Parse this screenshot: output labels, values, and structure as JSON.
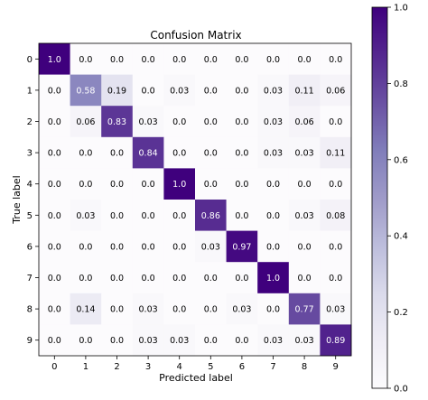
{
  "chart_data": {
    "type": "heatmap",
    "title": "Confusion Matrix",
    "xlabel": "Predicted label",
    "ylabel": "True label",
    "x_tick_labels": [
      "0",
      "1",
      "2",
      "3",
      "4",
      "5",
      "6",
      "7",
      "8",
      "9"
    ],
    "y_tick_labels": [
      "0",
      "1",
      "2",
      "3",
      "4",
      "5",
      "6",
      "7",
      "8",
      "9"
    ],
    "values": [
      [
        1.0,
        0.0,
        0.0,
        0.0,
        0.0,
        0.0,
        0.0,
        0.0,
        0.0,
        0.0
      ],
      [
        0.0,
        0.58,
        0.19,
        0.0,
        0.03,
        0.0,
        0.0,
        0.03,
        0.11,
        0.06
      ],
      [
        0.0,
        0.06,
        0.83,
        0.03,
        0.0,
        0.0,
        0.0,
        0.03,
        0.06,
        0.0
      ],
      [
        0.0,
        0.0,
        0.0,
        0.84,
        0.0,
        0.0,
        0.0,
        0.03,
        0.03,
        0.11
      ],
      [
        0.0,
        0.0,
        0.0,
        0.0,
        1.0,
        0.0,
        0.0,
        0.0,
        0.0,
        0.0
      ],
      [
        0.0,
        0.03,
        0.0,
        0.0,
        0.0,
        0.86,
        0.0,
        0.0,
        0.03,
        0.08
      ],
      [
        0.0,
        0.0,
        0.0,
        0.0,
        0.0,
        0.03,
        0.97,
        0.0,
        0.0,
        0.0
      ],
      [
        0.0,
        0.0,
        0.0,
        0.0,
        0.0,
        0.0,
        0.0,
        1.0,
        0.0,
        0.0
      ],
      [
        0.0,
        0.14,
        0.0,
        0.03,
        0.0,
        0.0,
        0.03,
        0.0,
        0.77,
        0.03
      ],
      [
        0.0,
        0.0,
        0.0,
        0.03,
        0.03,
        0.0,
        0.0,
        0.03,
        0.03,
        0.89
      ]
    ],
    "cell_labels": [
      [
        "1.0",
        "0.0",
        "0.0",
        "0.0",
        "0.0",
        "0.0",
        "0.0",
        "0.0",
        "0.0",
        "0.0"
      ],
      [
        "0.0",
        "0.58",
        "0.19",
        "0.0",
        "0.03",
        "0.0",
        "0.0",
        "0.03",
        "0.11",
        "0.06"
      ],
      [
        "0.0",
        "0.06",
        "0.83",
        "0.03",
        "0.0",
        "0.0",
        "0.0",
        "0.03",
        "0.06",
        "0.0"
      ],
      [
        "0.0",
        "0.0",
        "0.0",
        "0.84",
        "0.0",
        "0.0",
        "0.0",
        "0.03",
        "0.03",
        "0.11"
      ],
      [
        "0.0",
        "0.0",
        "0.0",
        "0.0",
        "1.0",
        "0.0",
        "0.0",
        "0.0",
        "0.0",
        "0.0"
      ],
      [
        "0.0",
        "0.03",
        "0.0",
        "0.0",
        "0.0",
        "0.86",
        "0.0",
        "0.0",
        "0.03",
        "0.08"
      ],
      [
        "0.0",
        "0.0",
        "0.0",
        "0.0",
        "0.0",
        "0.03",
        "0.97",
        "0.0",
        "0.0",
        "0.0"
      ],
      [
        "0.0",
        "0.0",
        "0.0",
        "0.0",
        "0.0",
        "0.0",
        "0.0",
        "1.0",
        "0.0",
        "0.0"
      ],
      [
        "0.0",
        "0.14",
        "0.0",
        "0.03",
        "0.0",
        "0.0",
        "0.03",
        "0.0",
        "0.77",
        "0.03"
      ],
      [
        "0.0",
        "0.0",
        "0.0",
        "0.03",
        "0.03",
        "0.0",
        "0.0",
        "0.03",
        "0.03",
        "0.89"
      ]
    ],
    "colorbar": {
      "range": [
        0.0,
        1.0
      ],
      "ticks": [
        0.0,
        0.2,
        0.4,
        0.6,
        0.8,
        1.0
      ],
      "tick_labels": [
        "0.0",
        "0.2",
        "0.4",
        "0.6",
        "0.8",
        "1.0"
      ]
    },
    "colormap": "Purples",
    "colormap_stops": [
      "#fcfbfd",
      "#efedf5",
      "#dadaeb",
      "#bcbddc",
      "#9e9ac8",
      "#807dba",
      "#6a51a3",
      "#54278f",
      "#3f007d"
    ],
    "text_color_light": "#ffffff",
    "text_color_dark": "#000000",
    "grid": false
  }
}
